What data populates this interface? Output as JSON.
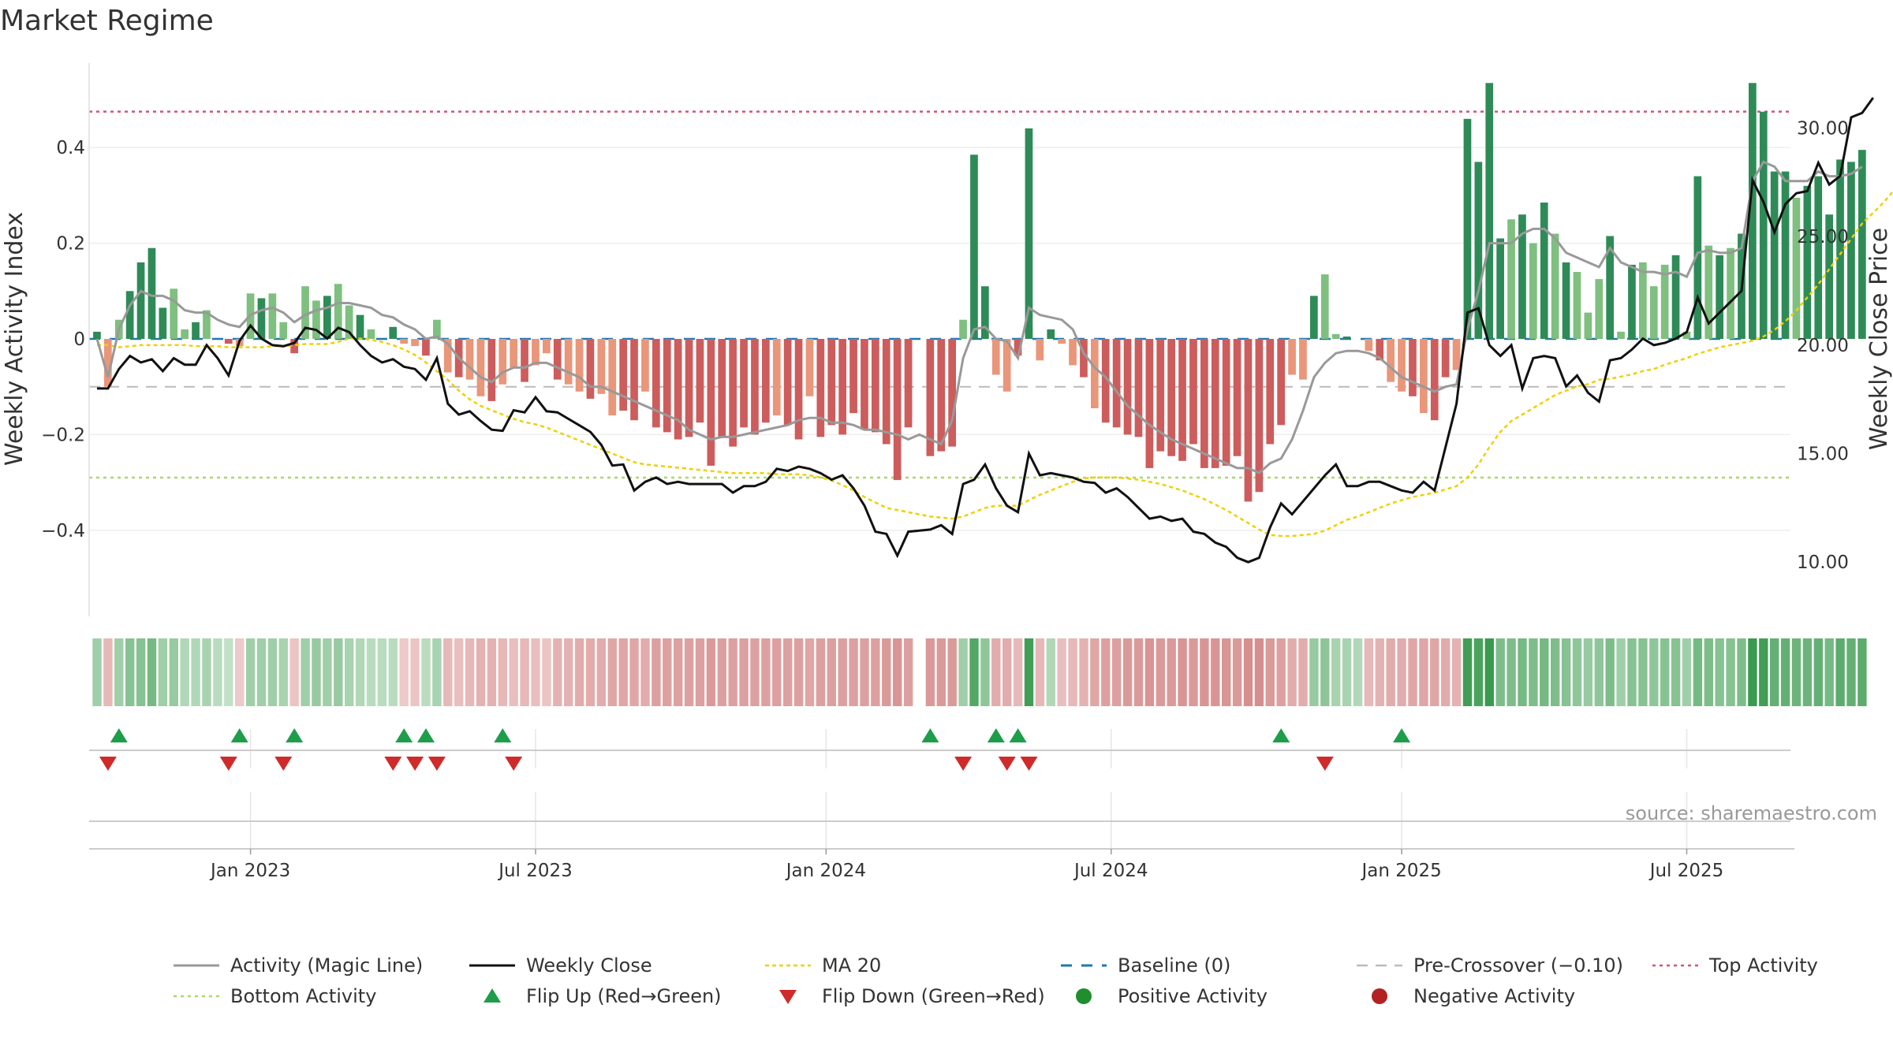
{
  "chart_data": {
    "type": "bar",
    "title": "Market Regime",
    "ylabel_left": "Weekly Activity Index",
    "ylabel_right": "Weekly Close Price",
    "ylim_left": [
      -0.57,
      0.57
    ],
    "yticks_left": [
      0.4,
      0.2,
      0,
      -0.2,
      -0.4
    ],
    "ytick_labels_left": [
      "0.4",
      "0.2",
      "0",
      "−0.2",
      "−0.4"
    ],
    "ylim_right": [
      7.5,
      33.0
    ],
    "yticks_right": [
      30,
      25,
      20,
      15,
      10
    ],
    "ytick_labels_right": [
      "30.00",
      "25.00",
      "20.00",
      "15.00",
      "10.00"
    ],
    "x_start_week": 0,
    "xtick_weeks": [
      14,
      40,
      66.5,
      92.5,
      119,
      145
    ],
    "xtick_labels": [
      "Jan 2023",
      "Jul 2023",
      "Jan 2024",
      "Jul 2024",
      "Jan 2025",
      "Jul 2025"
    ],
    "reference_lines": {
      "top_activity": 0.475,
      "bottom_activity": -0.29,
      "pre_crossover": -0.1,
      "baseline": 0
    },
    "activity_bars": [
      0.015,
      -0.1,
      0.04,
      0.1,
      0.16,
      0.19,
      0.065,
      0.105,
      0.02,
      0.035,
      0.06,
      0.0,
      -0.01,
      -0.015,
      0.095,
      0.085,
      0.095,
      0.035,
      -0.03,
      0.11,
      0.08,
      0.09,
      0.115,
      0.07,
      0.05,
      0.02,
      0.0,
      0.025,
      -0.01,
      -0.015,
      -0.035,
      0.04,
      -0.07,
      -0.08,
      -0.085,
      -0.12,
      -0.13,
      -0.095,
      -0.06,
      -0.09,
      -0.055,
      -0.03,
      -0.085,
      -0.095,
      -0.11,
      -0.125,
      -0.115,
      -0.16,
      -0.15,
      -0.17,
      -0.11,
      -0.185,
      -0.195,
      -0.21,
      -0.205,
      -0.175,
      -0.265,
      -0.205,
      -0.225,
      -0.185,
      -0.2,
      -0.175,
      -0.16,
      -0.18,
      -0.21,
      -0.12,
      -0.205,
      -0.18,
      -0.2,
      -0.155,
      -0.19,
      -0.195,
      -0.22,
      -0.295,
      -0.185,
      0.0,
      -0.245,
      -0.235,
      -0.225,
      0.04,
      0.385,
      0.11,
      -0.075,
      -0.11,
      -0.035,
      0.44,
      -0.045,
      0.02,
      -0.01,
      -0.055,
      -0.08,
      -0.145,
      -0.175,
      -0.185,
      -0.2,
      -0.205,
      -0.27,
      -0.235,
      -0.245,
      -0.255,
      -0.22,
      -0.27,
      -0.27,
      -0.265,
      -0.245,
      -0.34,
      -0.32,
      -0.22,
      -0.18,
      -0.075,
      -0.085,
      0.09,
      0.135,
      0.01,
      0.005,
      0.0,
      -0.025,
      -0.045,
      -0.09,
      -0.11,
      -0.12,
      -0.155,
      -0.17,
      -0.08,
      -0.065,
      0.46,
      0.37,
      0.535,
      0.21,
      0.25,
      0.26,
      0.2,
      0.285,
      0.22,
      0.16,
      0.14,
      0.055,
      0.125,
      0.215,
      0.015,
      0.155,
      0.16,
      0.11,
      0.155,
      0.175,
      0.015,
      0.34,
      0.195,
      0.175,
      0.19,
      0.22,
      0.535,
      0.475,
      0.35,
      0.35,
      0.295,
      0.32,
      0.34,
      0.26,
      0.375,
      0.37,
      0.395
    ],
    "magic_line": [
      0.0,
      -0.08,
      0.02,
      0.07,
      0.1,
      0.09,
      0.09,
      0.08,
      0.06,
      0.055,
      0.055,
      0.04,
      0.03,
      0.025,
      0.05,
      0.06,
      0.065,
      0.055,
      0.035,
      0.05,
      0.06,
      0.065,
      0.075,
      0.075,
      0.07,
      0.065,
      0.05,
      0.045,
      0.03,
      0.02,
      0.0,
      0.005,
      -0.01,
      -0.04,
      -0.06,
      -0.08,
      -0.09,
      -0.07,
      -0.06,
      -0.06,
      -0.05,
      -0.05,
      -0.06,
      -0.07,
      -0.08,
      -0.1,
      -0.1,
      -0.11,
      -0.12,
      -0.13,
      -0.14,
      -0.15,
      -0.16,
      -0.17,
      -0.19,
      -0.2,
      -0.21,
      -0.205,
      -0.205,
      -0.2,
      -0.195,
      -0.19,
      -0.185,
      -0.18,
      -0.17,
      -0.165,
      -0.165,
      -0.175,
      -0.175,
      -0.18,
      -0.19,
      -0.19,
      -0.195,
      -0.2,
      -0.21,
      -0.2,
      -0.21,
      -0.22,
      -0.17,
      -0.04,
      0.02,
      0.025,
      0.0,
      -0.005,
      -0.04,
      0.065,
      0.05,
      0.045,
      0.04,
      0.02,
      -0.03,
      -0.06,
      -0.08,
      -0.11,
      -0.14,
      -0.16,
      -0.18,
      -0.195,
      -0.21,
      -0.22,
      -0.23,
      -0.24,
      -0.25,
      -0.26,
      -0.27,
      -0.27,
      -0.28,
      -0.26,
      -0.25,
      -0.21,
      -0.15,
      -0.08,
      -0.05,
      -0.03,
      -0.025,
      -0.025,
      -0.03,
      -0.04,
      -0.06,
      -0.08,
      -0.09,
      -0.1,
      -0.11,
      -0.1,
      -0.095,
      0.02,
      0.1,
      0.2,
      0.2,
      0.2,
      0.22,
      0.23,
      0.23,
      0.21,
      0.18,
      0.17,
      0.16,
      0.15,
      0.19,
      0.16,
      0.15,
      0.14,
      0.14,
      0.135,
      0.14,
      0.13,
      0.18,
      0.185,
      0.18,
      0.18,
      0.19,
      0.33,
      0.37,
      0.36,
      0.33,
      0.33,
      0.33,
      0.35,
      0.34,
      0.34,
      0.345,
      0.36
    ],
    "weekly_close": [
      18.0,
      18.0,
      18.9,
      19.5,
      19.2,
      19.35,
      18.8,
      19.4,
      19.1,
      19.1,
      20.0,
      19.4,
      18.6,
      20.2,
      20.9,
      20.3,
      20.0,
      19.95,
      20.1,
      20.8,
      20.7,
      20.3,
      20.8,
      20.6,
      20.0,
      19.5,
      19.2,
      19.35,
      19.0,
      18.9,
      18.4,
      19.4,
      17.3,
      16.8,
      16.95,
      16.5,
      16.1,
      16.05,
      17.0,
      16.9,
      17.6,
      16.95,
      16.9,
      16.6,
      16.3,
      16.0,
      15.4,
      14.45,
      14.5,
      13.3,
      13.7,
      13.9,
      13.6,
      13.7,
      13.6,
      13.6,
      13.6,
      13.6,
      13.2,
      13.5,
      13.5,
      13.7,
      14.3,
      14.2,
      14.4,
      14.3,
      14.1,
      13.8,
      14.0,
      13.4,
      12.6,
      11.4,
      11.3,
      10.3,
      11.4,
      11.45,
      11.5,
      11.7,
      11.3,
      13.6,
      13.8,
      14.5,
      13.4,
      12.6,
      12.3,
      15.0,
      14.0,
      14.1,
      14.0,
      13.9,
      13.7,
      13.65,
      13.2,
      13.4,
      13.0,
      12.5,
      12.0,
      12.1,
      11.9,
      12.0,
      11.4,
      11.3,
      10.9,
      10.7,
      10.2,
      10.0,
      10.2,
      11.6,
      12.7,
      12.2,
      12.8,
      13.4,
      14.0,
      14.5,
      13.5,
      13.5,
      13.7,
      13.7,
      13.5,
      13.3,
      13.2,
      13.7,
      13.3,
      15.3,
      17.3,
      21.5,
      21.7,
      20.0,
      19.5,
      20.0,
      18.0,
      19.4,
      19.5,
      19.4,
      18.1,
      18.6,
      17.8,
      17.4,
      19.3,
      19.4,
      19.8,
      20.3,
      20.0,
      20.1,
      20.3,
      20.6,
      22.2,
      21.0,
      21.5,
      22.0,
      22.5,
      27.6,
      26.6,
      25.2,
      26.5,
      27.0,
      27.1,
      28.4,
      27.4,
      27.8,
      30.5,
      30.7,
      31.4
    ],
    "ma_20": [
      20.0,
      20.0,
      19.9,
      19.95,
      20.0,
      20.0,
      20.0,
      20.0,
      20.0,
      19.95,
      19.95,
      19.95,
      19.9,
      19.9,
      19.9,
      19.9,
      19.95,
      19.95,
      20.0,
      20.05,
      20.05,
      20.05,
      20.15,
      20.3,
      20.3,
      20.25,
      20.15,
      20.0,
      19.8,
      19.55,
      19.2,
      18.8,
      18.4,
      17.9,
      17.5,
      17.2,
      17.0,
      16.8,
      16.6,
      16.45,
      16.35,
      16.2,
      16.0,
      15.8,
      15.6,
      15.4,
      15.2,
      15.0,
      14.8,
      14.6,
      14.5,
      14.45,
      14.4,
      14.35,
      14.3,
      14.25,
      14.2,
      14.15,
      14.1,
      14.1,
      14.1,
      14.1,
      14.05,
      14.05,
      14.05,
      14.0,
      13.9,
      13.75,
      13.55,
      13.3,
      13.0,
      12.75,
      12.5,
      12.4,
      12.3,
      12.2,
      12.1,
      12.05,
      12.0,
      12.1,
      12.3,
      12.5,
      12.6,
      12.6,
      12.6,
      12.85,
      13.1,
      13.3,
      13.5,
      13.7,
      13.85,
      13.9,
      13.9,
      13.9,
      13.85,
      13.8,
      13.7,
      13.6,
      13.45,
      13.3,
      13.1,
      12.9,
      12.65,
      12.4,
      12.1,
      11.8,
      11.5,
      11.25,
      11.2,
      11.2,
      11.25,
      11.3,
      11.45,
      11.7,
      11.95,
      12.1,
      12.3,
      12.5,
      12.7,
      12.85,
      13.0,
      13.1,
      13.2,
      13.35,
      13.5,
      13.9,
      14.5,
      15.3,
      16.0,
      16.5,
      16.8,
      17.1,
      17.4,
      17.7,
      17.9,
      18.1,
      18.2,
      18.4,
      18.45,
      18.55,
      18.65,
      18.8,
      18.9,
      19.1,
      19.25,
      19.4,
      19.6,
      19.75,
      19.9,
      20.0,
      20.1,
      20.2,
      20.4,
      20.7,
      21.1,
      21.6,
      22.2,
      22.8,
      23.5,
      24.2,
      24.9,
      25.6,
      26.1,
      26.6,
      27.2
    ],
    "heat_strip": [
      0.4,
      -0.35,
      0.4,
      0.55,
      0.55,
      0.65,
      0.4,
      0.45,
      0.3,
      0.3,
      0.35,
      0.25,
      0.2,
      -0.2,
      0.4,
      0.4,
      0.4,
      0.35,
      -0.25,
      0.4,
      0.45,
      0.4,
      0.45,
      0.35,
      0.3,
      0.25,
      0.25,
      0.25,
      -0.2,
      -0.25,
      0.25,
      0.35,
      -0.35,
      -0.3,
      -0.35,
      -0.4,
      -0.4,
      -0.35,
      -0.3,
      -0.35,
      -0.3,
      -0.25,
      -0.4,
      -0.4,
      -0.45,
      -0.45,
      -0.45,
      -0.5,
      -0.5,
      -0.5,
      -0.45,
      -0.55,
      -0.55,
      -0.55,
      -0.55,
      -0.55,
      -0.6,
      -0.55,
      -0.55,
      -0.55,
      -0.55,
      -0.55,
      -0.55,
      -0.55,
      -0.55,
      -0.5,
      -0.55,
      -0.55,
      -0.55,
      -0.55,
      -0.55,
      -0.55,
      -0.6,
      -0.65,
      -0.55,
      null,
      -0.6,
      -0.6,
      -0.6,
      0.4,
      0.85,
      0.5,
      -0.45,
      -0.45,
      -0.35,
      0.95,
      -0.35,
      0.3,
      -0.3,
      -0.35,
      -0.4,
      -0.5,
      -0.55,
      -0.55,
      -0.6,
      -0.6,
      -0.65,
      -0.6,
      -0.6,
      -0.65,
      -0.6,
      -0.65,
      -0.65,
      -0.65,
      -0.6,
      -0.7,
      -0.7,
      -0.6,
      -0.55,
      -0.45,
      -0.45,
      0.45,
      0.5,
      0.35,
      0.35,
      0.3,
      -0.35,
      -0.4,
      -0.45,
      -0.45,
      -0.5,
      -0.5,
      -0.5,
      -0.45,
      -0.4,
      0.95,
      0.9,
      1.0,
      0.6,
      0.6,
      0.65,
      0.6,
      0.65,
      0.6,
      0.55,
      0.5,
      0.45,
      0.5,
      0.6,
      0.4,
      0.55,
      0.55,
      0.5,
      0.55,
      0.55,
      0.4,
      0.65,
      0.6,
      0.55,
      0.55,
      0.6,
      1.0,
      0.95,
      0.75,
      0.75,
      0.7,
      0.7,
      0.75,
      0.65,
      0.8,
      0.75,
      0.8
    ],
    "flip_up_weeks": [
      2,
      13,
      18,
      28,
      30,
      37,
      76,
      82,
      84,
      108,
      119
    ],
    "flip_down_weeks": [
      1,
      12,
      17,
      27,
      29,
      31,
      38,
      79,
      83,
      85,
      112
    ],
    "legend": [
      "Activity (Magic Line)",
      "Weekly Close",
      "MA 20",
      "Baseline (0)",
      "Pre-Crossover (−0.10)",
      "Top Activity",
      "Bottom Activity",
      "Flip Up (Red→Green)",
      "Flip Down (Green→Red)",
      "Positive Activity",
      "Negative Activity"
    ],
    "source": "source: sharemaestro.com"
  },
  "colors": {
    "pos_strong": "#2e8b57",
    "pos_light": "#7fbf7f",
    "neg_strong": "#cd5c5c",
    "neg_light": "#e9967a",
    "magic_line": "#999999",
    "weekly_close": "#111111",
    "ma20": "#f0d000",
    "baseline": "#1f77b4",
    "pre_crossover": "#bbbbbb",
    "top_activity": "#d6536d",
    "bottom_activity": "#a8d86e",
    "flip_up": "#1e9e4a",
    "flip_down": "#d02a2a",
    "positive_dot": "#1f8f2e",
    "negative_dot": "#b22222"
  }
}
